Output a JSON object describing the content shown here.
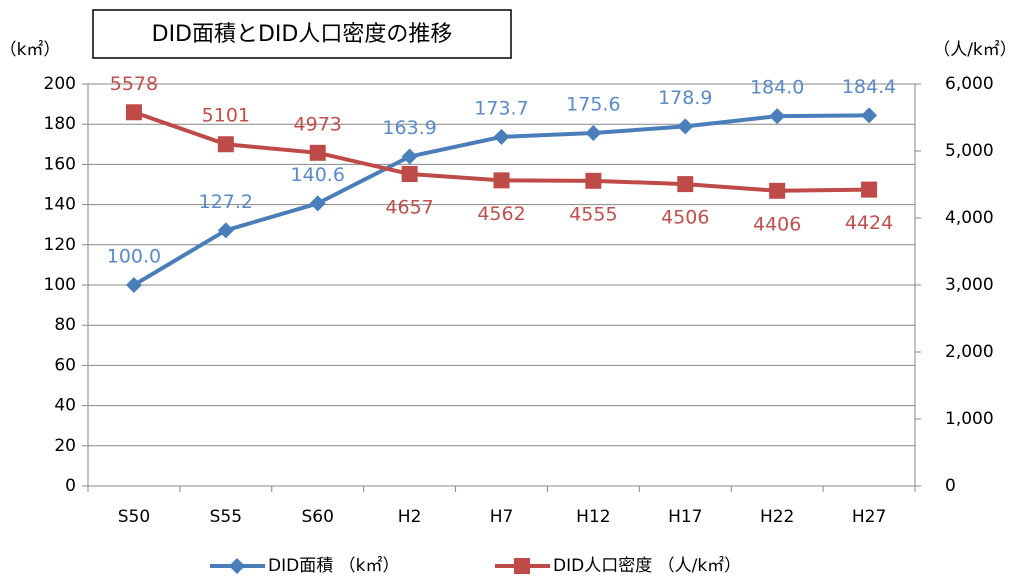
{
  "chart_data": {
    "type": "line",
    "title": "DID面積とDID人口密度の推移",
    "y_label": "（k㎡）",
    "y2_label": "（人/k㎡）",
    "categories": [
      "S50",
      "S55",
      "S60",
      "H2",
      "H7",
      "H12",
      "H17",
      "H22",
      "H27"
    ],
    "series": [
      {
        "name": "DID面積 （k㎡）",
        "color": "#4a7ebb",
        "marker": "diamond",
        "values": [
          100,
          127.2,
          140.6,
          163.9,
          173.7,
          175.6,
          178.9,
          184,
          184.4
        ],
        "value_labels": [
          "100.0",
          "127.2",
          "140.6",
          "163.9",
          "173.7",
          "175.6",
          "178.9",
          "184.0",
          "184.4"
        ]
      },
      {
        "name": "DID人口密度 （人/k㎡）",
        "color": "#be4b48",
        "marker": "square",
        "axis": "y2",
        "values": [
          5578,
          5101,
          4973,
          4657,
          4562,
          4555,
          4506,
          4406,
          4424
        ]
      }
    ],
    "ylim": [
      0,
      200
    ],
    "yticks": [
      0,
      20,
      40,
      60,
      80,
      100,
      120,
      140,
      160,
      180,
      200
    ],
    "y2lim": [
      0,
      6000
    ],
    "y2ticks": [
      0,
      {
        "value": 1000,
        "label": "1,000"
      },
      {
        "value": 2000,
        "label": "2,000"
      },
      {
        "value": 3000,
        "label": "3,000"
      },
      {
        "value": 4000,
        "label": "4,000"
      },
      {
        "value": 5000,
        "label": "5,000"
      },
      {
        "value": 6000,
        "label": "6,000"
      }
    ],
    "grid": true,
    "legend": "bottom"
  }
}
